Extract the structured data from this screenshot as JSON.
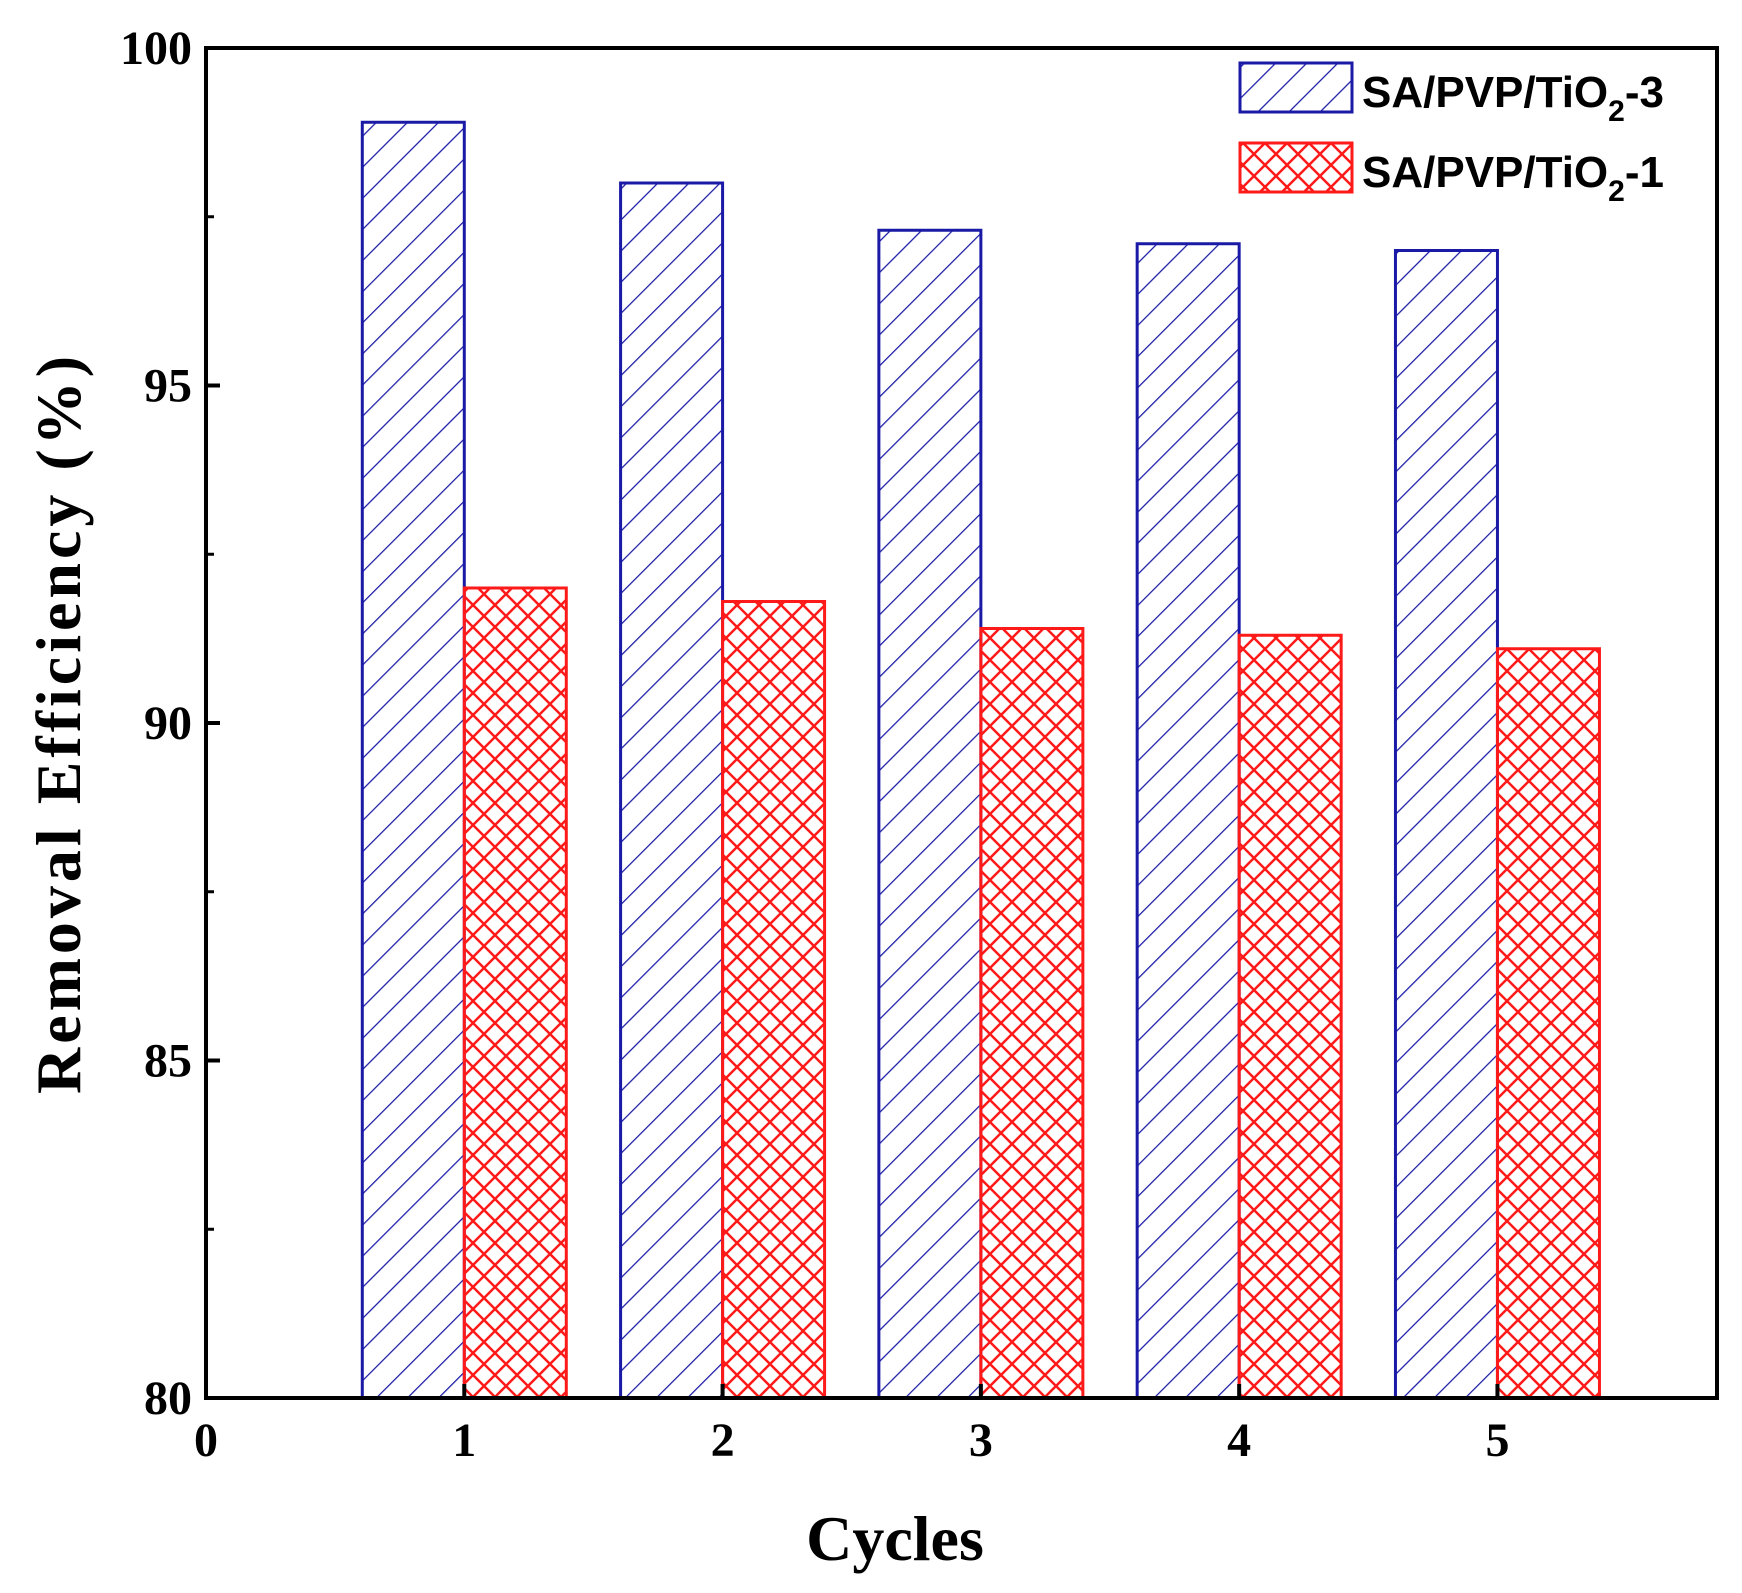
{
  "chart_data": {
    "type": "bar",
    "xlabel": "Cycles",
    "ylabel": "Removal Efficiency (%)",
    "categories": [
      "1",
      "2",
      "3",
      "4",
      "5"
    ],
    "x_ticks": [
      "0",
      "1",
      "2",
      "3",
      "4",
      "5"
    ],
    "y_ticks": [
      "80",
      "85",
      "90",
      "95",
      "100"
    ],
    "xlim": [
      0,
      5.85
    ],
    "ylim": [
      80,
      100
    ],
    "legend_position": "top-right",
    "grid": false,
    "series": [
      {
        "name_main": "SA/PVP/TiO",
        "name_sub": "2",
        "name_suffix": "-3",
        "pattern": "diagonal-hatch",
        "color": "#1a1aa6",
        "values": [
          98.9,
          98.0,
          97.3,
          97.1,
          97.0
        ]
      },
      {
        "name_main": "SA/PVP/TiO",
        "name_sub": "2",
        "name_suffix": "-1",
        "pattern": "cross-hatch",
        "color": "#ff1a1a",
        "values": [
          92.0,
          91.8,
          91.4,
          91.3,
          91.1
        ]
      }
    ]
  }
}
